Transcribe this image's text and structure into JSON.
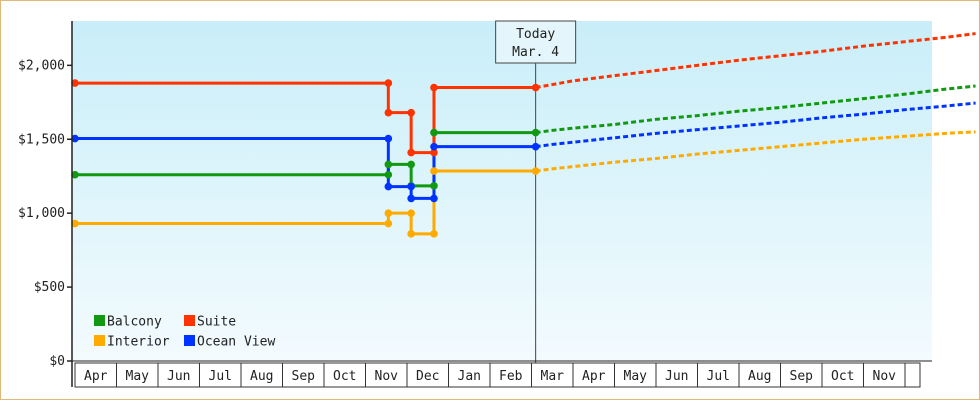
{
  "chart_data": {
    "type": "line",
    "title": "",
    "xlabel": "",
    "ylabel": "",
    "ylim": [
      0,
      2300
    ],
    "yticks": [
      0,
      500,
      1000,
      1500,
      2000
    ],
    "ytick_labels": [
      "$0",
      "$500",
      "$1,000",
      "$1,500",
      "$2,000"
    ],
    "grid": false,
    "legend_position": "bottom-left",
    "months": [
      "Apr",
      "May",
      "Jun",
      "Jul",
      "Aug",
      "Sep",
      "Oct",
      "Nov",
      "Dec",
      "Jan",
      "Feb",
      "Mar",
      "Apr",
      "May",
      "Jun",
      "Jul",
      "Aug",
      "Sep",
      "Oct",
      "Nov"
    ],
    "today": {
      "line1": "Today",
      "line2": "Mar. 4",
      "month_index": 11.1
    },
    "series": [
      {
        "name": "Balcony",
        "color": "#119911",
        "history": [
          [
            0,
            1260
          ],
          [
            7.55,
            1260
          ],
          [
            7.55,
            1330
          ],
          [
            8.1,
            1330
          ],
          [
            8.1,
            1185
          ],
          [
            8.65,
            1185
          ],
          [
            8.65,
            1545
          ],
          [
            11.1,
            1545
          ]
        ],
        "forecast": [
          [
            11.1,
            1545
          ],
          [
            11.5,
            1560
          ],
          [
            12,
            1575
          ],
          [
            13,
            1600
          ],
          [
            14,
            1635
          ],
          [
            15,
            1660
          ],
          [
            16,
            1690
          ],
          [
            17,
            1715
          ],
          [
            18,
            1745
          ],
          [
            19,
            1775
          ],
          [
            20,
            1805
          ],
          [
            21,
            1840
          ],
          [
            21.7,
            1860
          ]
        ]
      },
      {
        "name": "Suite",
        "color": "#ff3300",
        "history": [
          [
            0,
            1880
          ],
          [
            7.55,
            1880
          ],
          [
            7.55,
            1680
          ],
          [
            8.1,
            1680
          ],
          [
            8.1,
            1410
          ],
          [
            8.65,
            1410
          ],
          [
            8.65,
            1850
          ],
          [
            11.1,
            1850
          ]
        ],
        "forecast": [
          [
            11.1,
            1850
          ],
          [
            11.5,
            1870
          ],
          [
            12,
            1895
          ],
          [
            13,
            1930
          ],
          [
            14,
            1965
          ],
          [
            15,
            2000
          ],
          [
            16,
            2035
          ],
          [
            17,
            2065
          ],
          [
            18,
            2095
          ],
          [
            19,
            2130
          ],
          [
            20,
            2160
          ],
          [
            21,
            2190
          ],
          [
            21.7,
            2215
          ]
        ]
      },
      {
        "name": "Interior",
        "color": "#ffaa00",
        "history": [
          [
            0,
            930
          ],
          [
            7.55,
            930
          ],
          [
            7.55,
            1000
          ],
          [
            8.1,
            1000
          ],
          [
            8.1,
            860
          ],
          [
            8.65,
            860
          ],
          [
            8.65,
            1285
          ],
          [
            11.1,
            1285
          ]
        ],
        "forecast": [
          [
            11.1,
            1285
          ],
          [
            11.5,
            1300
          ],
          [
            12,
            1315
          ],
          [
            13,
            1345
          ],
          [
            14,
            1370
          ],
          [
            15,
            1400
          ],
          [
            16,
            1425
          ],
          [
            17,
            1450
          ],
          [
            18,
            1475
          ],
          [
            19,
            1500
          ],
          [
            20,
            1520
          ],
          [
            21,
            1540
          ],
          [
            21.7,
            1550
          ]
        ]
      },
      {
        "name": "Ocean View",
        "color": "#0033ff",
        "history": [
          [
            0,
            1505
          ],
          [
            7.55,
            1505
          ],
          [
            7.55,
            1180
          ],
          [
            8.1,
            1180
          ],
          [
            8.1,
            1100
          ],
          [
            8.65,
            1100
          ],
          [
            8.65,
            1450
          ],
          [
            11.1,
            1450
          ]
        ],
        "forecast": [
          [
            11.1,
            1450
          ],
          [
            11.5,
            1465
          ],
          [
            12,
            1480
          ],
          [
            13,
            1510
          ],
          [
            14,
            1540
          ],
          [
            15,
            1565
          ],
          [
            16,
            1590
          ],
          [
            17,
            1615
          ],
          [
            18,
            1645
          ],
          [
            19,
            1670
          ],
          [
            20,
            1700
          ],
          [
            21,
            1725
          ],
          [
            21.7,
            1745
          ]
        ]
      }
    ],
    "markers": [
      {
        "series": 0,
        "points": [
          [
            0,
            1260
          ],
          [
            7.55,
            1260
          ],
          [
            7.55,
            1330
          ],
          [
            8.1,
            1330
          ],
          [
            8.1,
            1185
          ],
          [
            8.65,
            1185
          ],
          [
            8.65,
            1545
          ],
          [
            11.1,
            1545
          ]
        ]
      },
      {
        "series": 1,
        "points": [
          [
            0,
            1880
          ],
          [
            7.55,
            1880
          ],
          [
            7.55,
            1680
          ],
          [
            8.1,
            1680
          ],
          [
            8.1,
            1410
          ],
          [
            8.65,
            1410
          ],
          [
            8.65,
            1850
          ],
          [
            11.1,
            1850
          ]
        ]
      },
      {
        "series": 2,
        "points": [
          [
            0,
            930
          ],
          [
            7.55,
            930
          ],
          [
            7.55,
            1000
          ],
          [
            8.1,
            1000
          ],
          [
            8.1,
            860
          ],
          [
            8.65,
            860
          ],
          [
            8.65,
            1285
          ],
          [
            11.1,
            1285
          ]
        ]
      },
      {
        "series": 3,
        "points": [
          [
            0,
            1505
          ],
          [
            7.55,
            1505
          ],
          [
            7.55,
            1180
          ],
          [
            8.1,
            1180
          ],
          [
            8.1,
            1100
          ],
          [
            8.65,
            1100
          ],
          [
            8.65,
            1450
          ],
          [
            11.1,
            1450
          ]
        ]
      }
    ]
  }
}
